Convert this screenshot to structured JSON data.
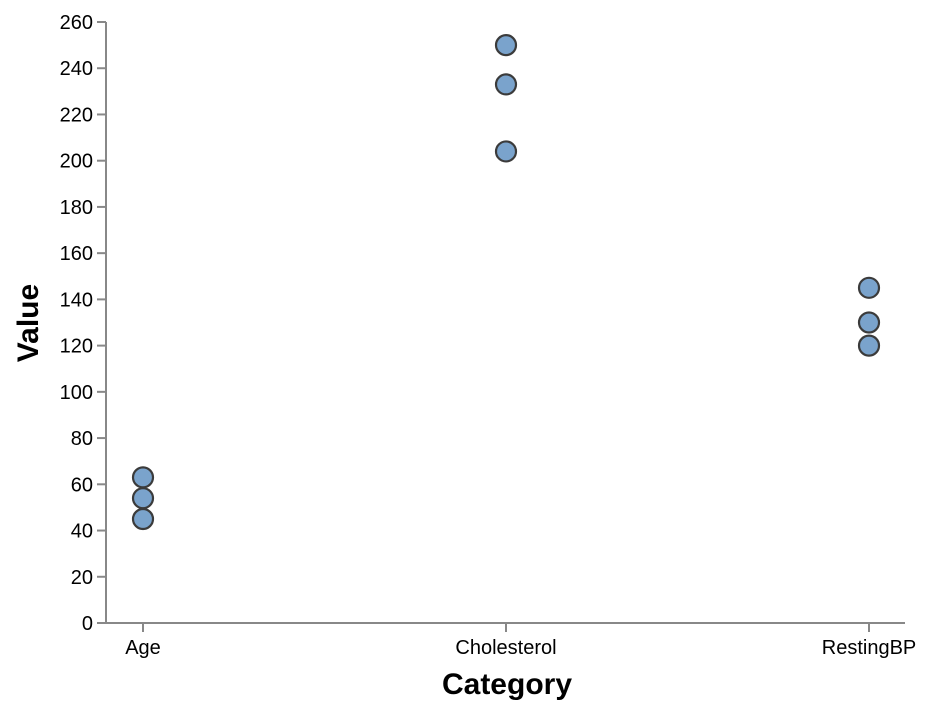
{
  "chart_data": {
    "type": "scatter",
    "xlabel": "Category",
    "ylabel": "Value",
    "categories": [
      "Age",
      "Cholesterol",
      "RestingBP"
    ],
    "ylim": [
      0,
      260
    ],
    "yticks": [
      0,
      20,
      40,
      60,
      80,
      100,
      120,
      140,
      160,
      180,
      200,
      220,
      240,
      260
    ],
    "points": [
      {
        "x": "Age",
        "y": 45
      },
      {
        "x": "Age",
        "y": 54
      },
      {
        "x": "Age",
        "y": 63
      },
      {
        "x": "Cholesterol",
        "y": 204
      },
      {
        "x": "Cholesterol",
        "y": 233
      },
      {
        "x": "Cholesterol",
        "y": 250
      },
      {
        "x": "RestingBP",
        "y": 120
      },
      {
        "x": "RestingBP",
        "y": 130
      },
      {
        "x": "RestingBP",
        "y": 145
      }
    ],
    "grid": false,
    "colors": {
      "marker_fill": "#7aa3cc",
      "marker_stroke": "#3b3b3b",
      "axis": "#888888"
    }
  }
}
